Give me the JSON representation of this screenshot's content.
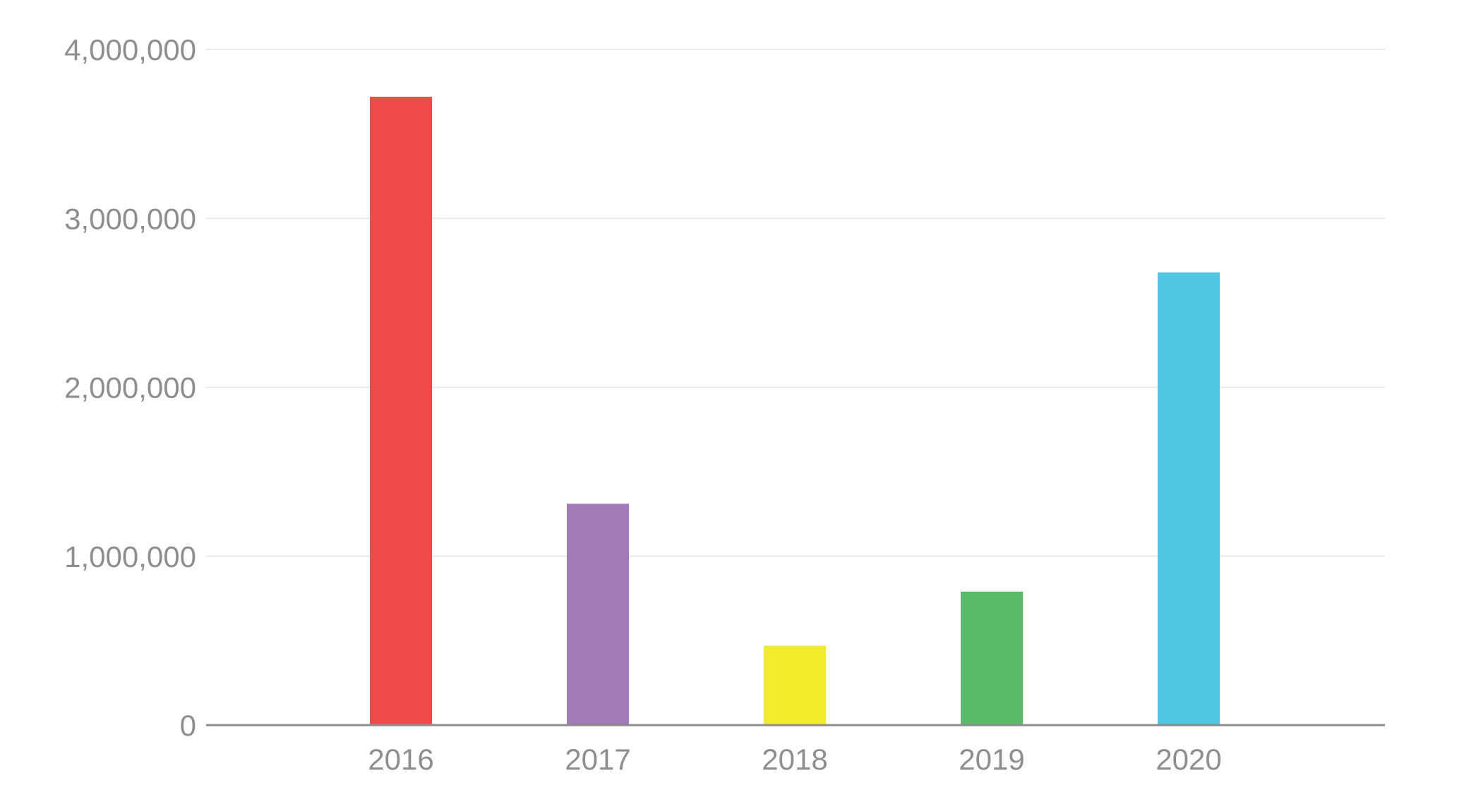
{
  "chart_data": {
    "type": "bar",
    "title": "",
    "xlabel": "",
    "ylabel": "",
    "categories": [
      "2016",
      "2017",
      "2018",
      "2019",
      "2020"
    ],
    "values": [
      3720000,
      1310000,
      470000,
      790000,
      2680000
    ],
    "colors": [
      "#ef4b4b",
      "#a17ab7",
      "#f2eb2a",
      "#58bb67",
      "#4fc6e0"
    ],
    "ylim": [
      0,
      4000000
    ],
    "yticks": [
      0,
      1000000,
      2000000,
      3000000,
      4000000
    ],
    "ytick_labels": [
      "0",
      "1,000,000",
      "2,000,000",
      "3,000,000",
      "4,000,000"
    ],
    "grid": true,
    "legend": "none"
  }
}
